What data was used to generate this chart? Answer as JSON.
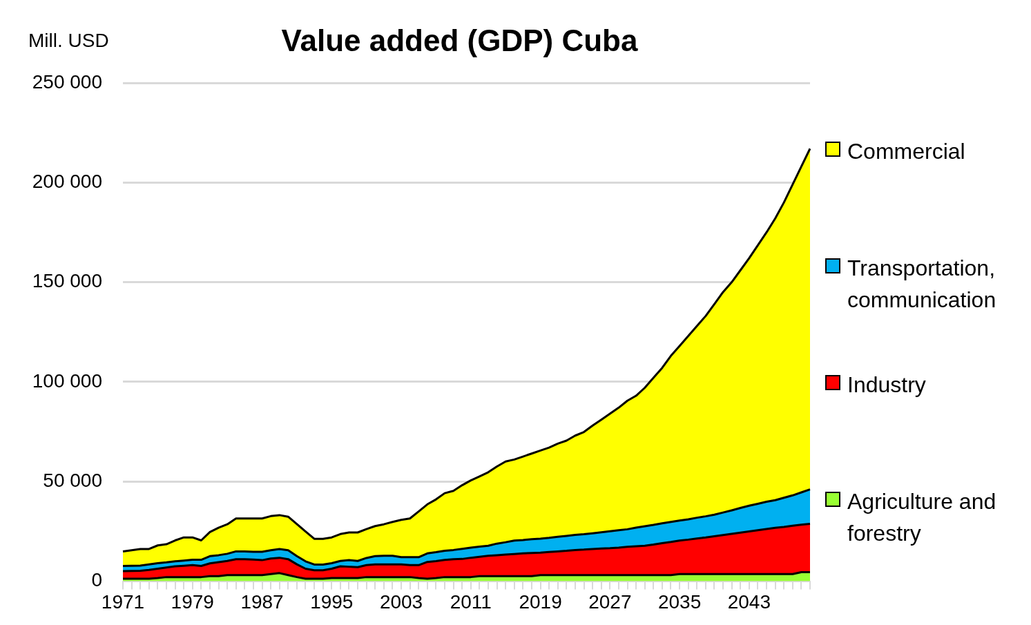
{
  "chart_data": {
    "type": "area",
    "title": "Value added (GDP) Cuba",
    "ylabel": "Mill. USD",
    "stacked": true,
    "grid": "y",
    "legend": "right",
    "categories": [
      "1971",
      null,
      null,
      null,
      null,
      null,
      null,
      null,
      "1979",
      null,
      null,
      null,
      null,
      null,
      null,
      null,
      "1987",
      null,
      null,
      null,
      null,
      null,
      null,
      null,
      "1995",
      null,
      null,
      null,
      null,
      null,
      null,
      null,
      "2003",
      null,
      null,
      null,
      null,
      null,
      null,
      null,
      "2011",
      null,
      null,
      null,
      null,
      null,
      null,
      null,
      "2019",
      null,
      null,
      null,
      null,
      null,
      null,
      null,
      "2027",
      null,
      null,
      null,
      null,
      null,
      null,
      null,
      "2035",
      null,
      null,
      null,
      null,
      null,
      null,
      null,
      "2043",
      null,
      null,
      null,
      null,
      null,
      null,
      null
    ],
    "ylim": [
      0,
      250000
    ],
    "yticks": [
      0,
      {
        "value": 50000,
        "label": "50 000"
      },
      {
        "value": 100000,
        "label": "100 000"
      },
      {
        "value": 150000,
        "label": "150 000"
      },
      {
        "value": 200000,
        "label": "200 000"
      },
      {
        "value": 250000,
        "label": "250 000"
      }
    ],
    "series": [
      {
        "name": "Agriculture and forestry",
        "color": "#99ff33",
        "values": [
          1200,
          1200,
          1200,
          1200,
          1500,
          2000,
          2000,
          2000,
          2000,
          2000,
          2500,
          2500,
          3000,
          3000,
          3000,
          3000,
          3000,
          3500,
          4000,
          3000,
          2000,
          1200,
          1200,
          1200,
          1500,
          1500,
          1500,
          1500,
          2000,
          2000,
          2000,
          2000,
          2000,
          2000,
          1500,
          1200,
          1500,
          2000,
          2000,
          2000,
          2000,
          2500,
          2500,
          2500,
          2500,
          2500,
          2500,
          2500,
          3000,
          3000,
          3000,
          3000,
          3000,
          3000,
          3000,
          3000,
          3000,
          3000,
          3000,
          3000,
          3000,
          3000,
          3000,
          3000,
          3500,
          3500,
          3500,
          3500,
          3500,
          3500,
          3500,
          3500,
          3500,
          3500,
          3500,
          3500,
          3500,
          3500,
          4500,
          4500
        ]
      },
      {
        "name": "Industry",
        "color": "#ff0000",
        "values": [
          3800,
          3900,
          4000,
          4400,
          4700,
          4800,
          5400,
          5700,
          6000,
          5600,
          6400,
          7000,
          7100,
          8000,
          8000,
          7800,
          7500,
          7800,
          7700,
          8000,
          6400,
          5000,
          4200,
          4200,
          4700,
          5900,
          5700,
          5500,
          6000,
          6400,
          6400,
          6400,
          6400,
          6000,
          6500,
          8400,
          8500,
          8600,
          9000,
          9100,
          9700,
          9700,
          10200,
          10500,
          10800,
          11100,
          11400,
          11600,
          11300,
          11600,
          11900,
          12200,
          12600,
          12800,
          13100,
          13300,
          13500,
          13800,
          14200,
          14500,
          14700,
          15300,
          16000,
          16600,
          16800,
          17300,
          17900,
          18400,
          19000,
          19600,
          20200,
          20800,
          21400,
          22000,
          22600,
          23200,
          23700,
          24300,
          23800,
          24200
        ]
      },
      {
        "name": "Transportation, communication",
        "color": "#00b0f0",
        "values": [
          2600,
          2600,
          2600,
          2800,
          2800,
          2600,
          2500,
          2600,
          2700,
          3100,
          3600,
          3500,
          3600,
          3900,
          3900,
          3900,
          4200,
          4200,
          4400,
          4500,
          4100,
          3700,
          2900,
          2900,
          2800,
          2700,
          3300,
          3100,
          3600,
          4100,
          4300,
          4300,
          3600,
          4000,
          4000,
          4300,
          4500,
          4600,
          4600,
          5100,
          5100,
          5100,
          5000,
          5800,
          6200,
          6700,
          6700,
          6900,
          7000,
          7100,
          7300,
          7500,
          7600,
          7700,
          7900,
          8200,
          8500,
          8700,
          8800,
          9300,
          9800,
          9900,
          10000,
          10100,
          10100,
          10200,
          10400,
          10600,
          10800,
          11300,
          11800,
          12400,
          12900,
          13300,
          13700,
          13900,
          14600,
          15200,
          16200,
          17300
        ]
      },
      {
        "name": "Commercial",
        "color": "#ffff00",
        "values": [
          7300,
          7800,
          8300,
          7700,
          8900,
          9100,
          10500,
          11600,
          11200,
          9700,
          12100,
          13800,
          14800,
          16500,
          16500,
          16700,
          16700,
          17100,
          17000,
          16800,
          16100,
          15000,
          12900,
          12900,
          12900,
          13500,
          13900,
          14300,
          14500,
          15100,
          15800,
          17000,
          18700,
          19400,
          22900,
          24600,
          26500,
          28900,
          29700,
          31900,
          33700,
          35200,
          36900,
          38700,
          40500,
          40700,
          41900,
          43000,
          44200,
          45300,
          46800,
          47800,
          49800,
          51300,
          54000,
          56500,
          59000,
          61500,
          64500,
          66200,
          69500,
          73800,
          78000,
          83300,
          87600,
          92000,
          96200,
          100500,
          105700,
          110600,
          114500,
          119300,
          124200,
          129700,
          135200,
          141400,
          148200,
          156000,
          163500,
          171000
        ]
      }
    ]
  }
}
